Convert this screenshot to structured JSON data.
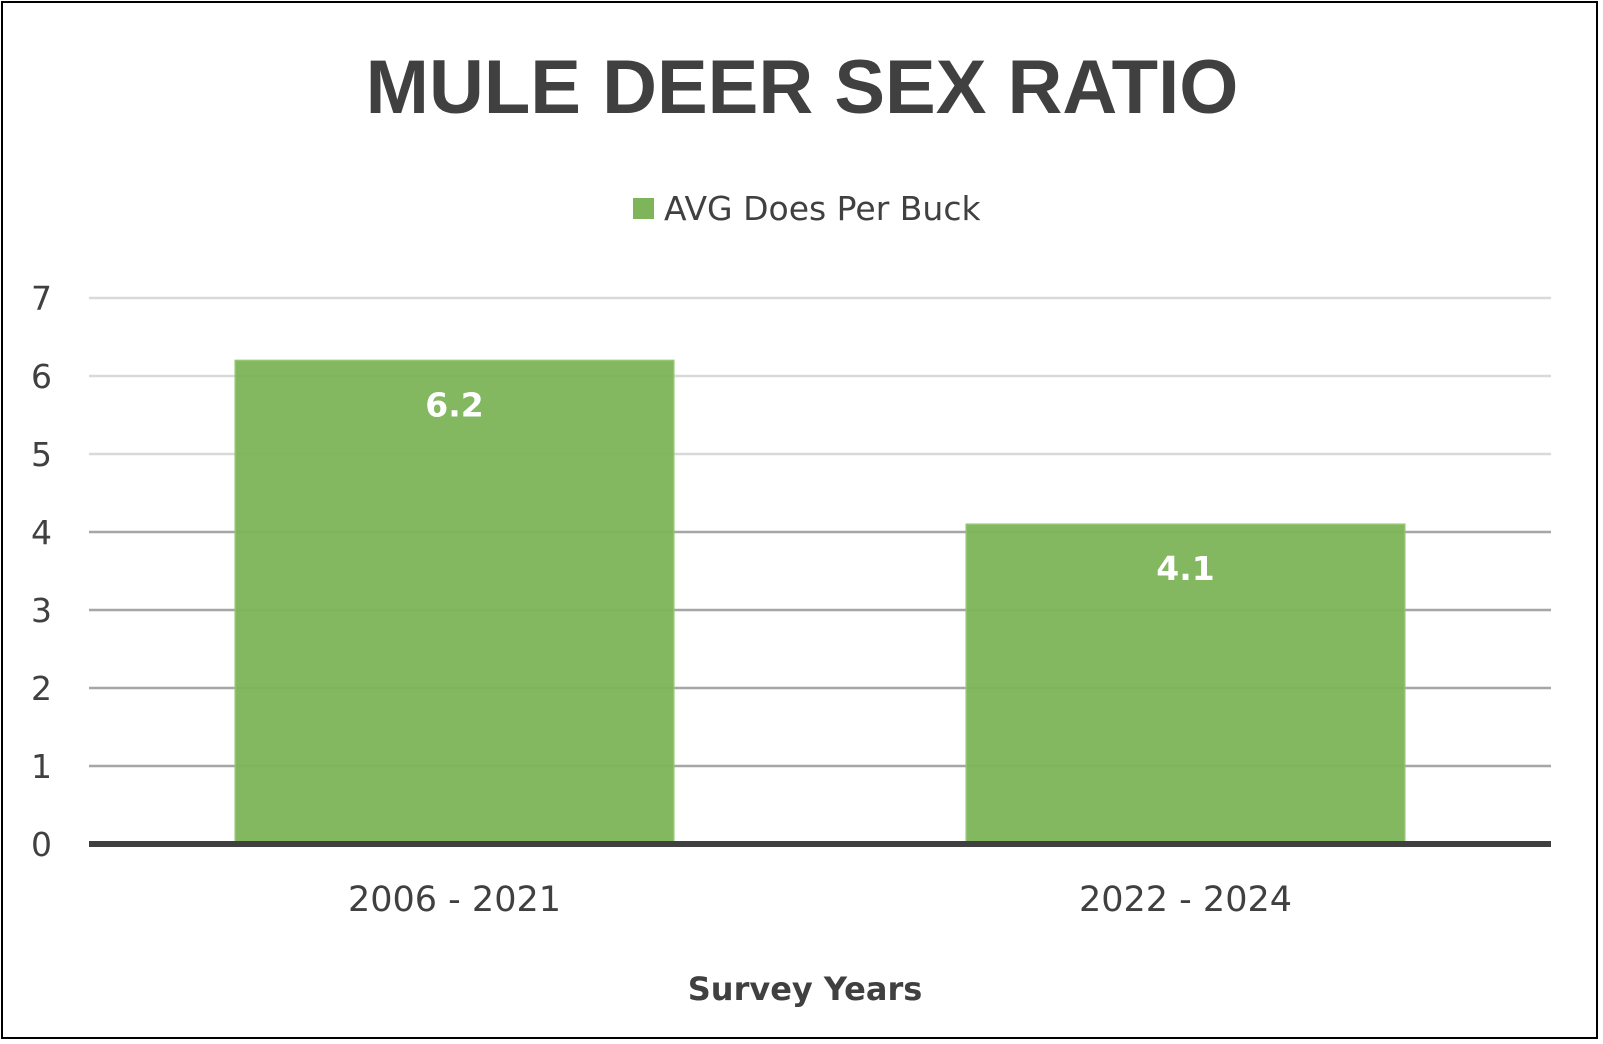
{
  "chart_data": {
    "type": "bar",
    "title": "MULE DEER SEX RATIO",
    "xlabel": "Survey Years",
    "ylabel": "",
    "categories": [
      "2006 - 2021",
      "2022 - 2024"
    ],
    "series": [
      {
        "name": "AVG Does Per Buck",
        "values": [
          6.2,
          4.1
        ],
        "color": "#7EB55A"
      }
    ],
    "data_labels": [
      "6.2",
      "4.1"
    ],
    "ylim": [
      0,
      7
    ],
    "yticks": [
      "0",
      "1",
      "2",
      "3",
      "4",
      "5",
      "6",
      "7"
    ],
    "grid": true,
    "legend_position": "top"
  }
}
